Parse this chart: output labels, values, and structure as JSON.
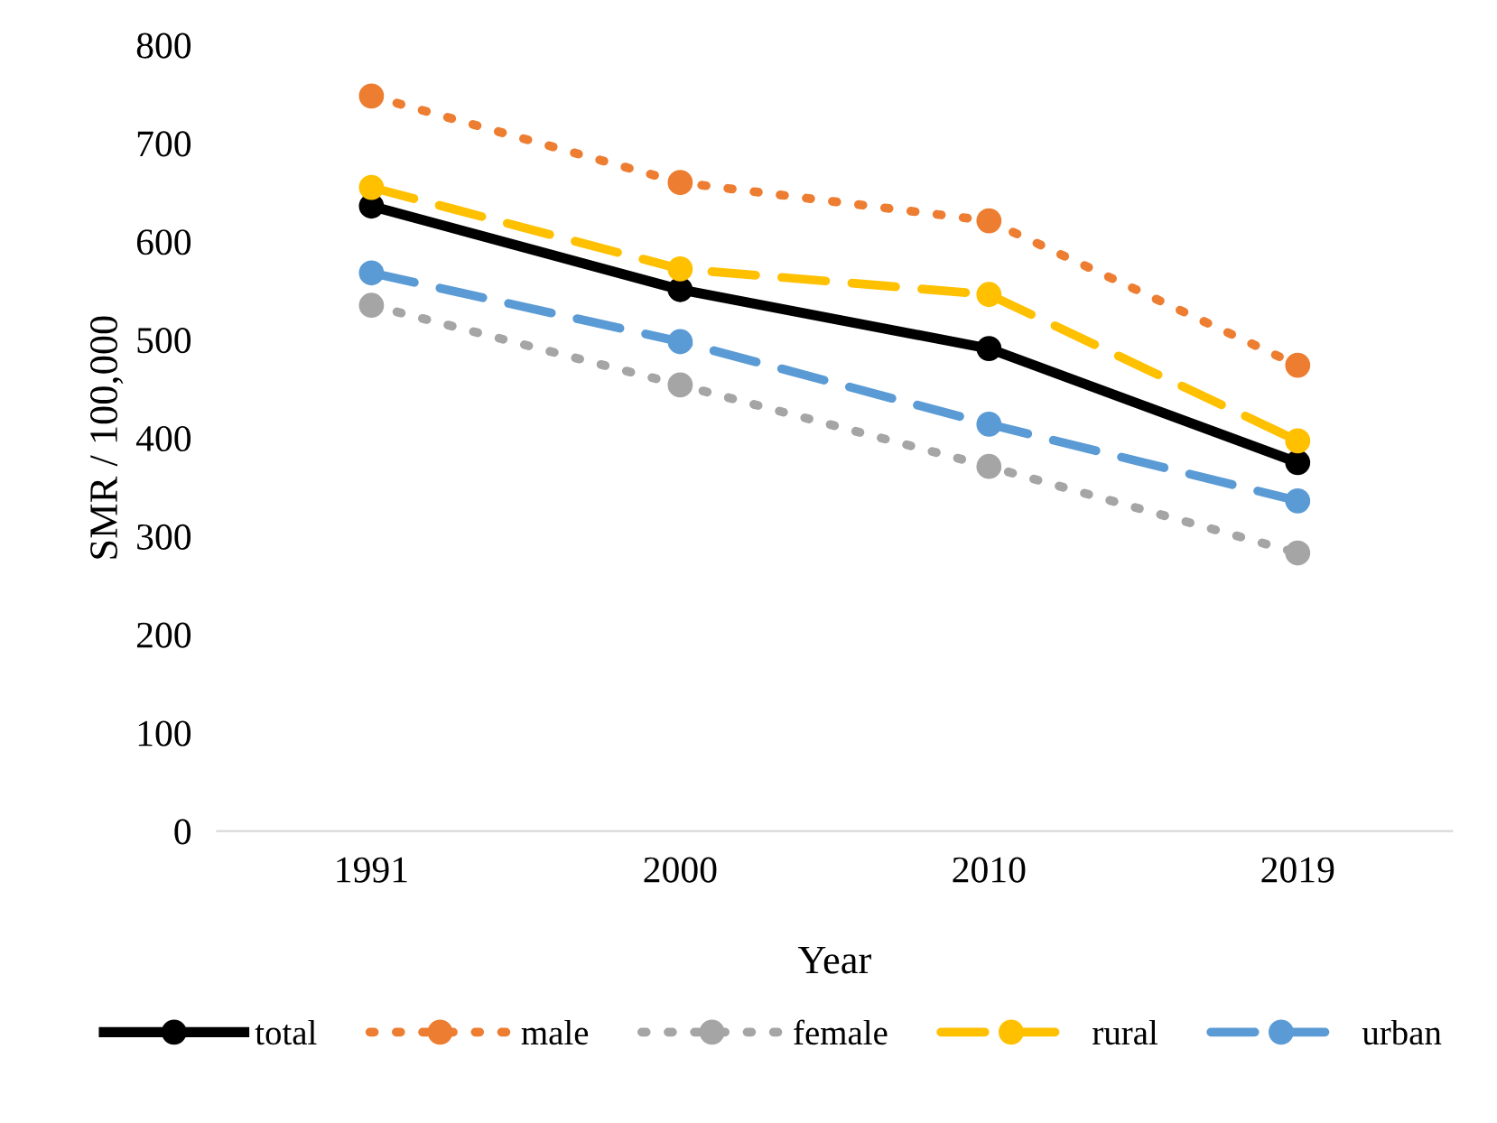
{
  "chart_data": {
    "type": "line",
    "xlabel": "Year",
    "ylabel": "SMR / 100,000",
    "categories": [
      "1991",
      "2000",
      "2010",
      "2019"
    ],
    "series": [
      {
        "name": "total",
        "color": "#000000",
        "line_style": "solid",
        "values": [
          636,
          551,
          491,
          375
        ]
      },
      {
        "name": "male",
        "color": "#ed7d31",
        "line_style": "dotted",
        "values": [
          748,
          660,
          621,
          474
        ]
      },
      {
        "name": "female",
        "color": "#a5a5a5",
        "line_style": "dotted",
        "values": [
          535,
          454,
          371,
          283
        ]
      },
      {
        "name": "rural",
        "color": "#ffc000",
        "line_style": "dashed",
        "values": [
          655,
          572,
          546,
          397
        ]
      },
      {
        "name": "urban",
        "color": "#5b9bd5",
        "line_style": "dashed",
        "values": [
          568,
          498,
          414,
          336
        ]
      }
    ],
    "ylim": [
      0,
      800
    ],
    "yticks": [
      0,
      100,
      200,
      300,
      400,
      500,
      600,
      700,
      800
    ],
    "grid": false,
    "legend": "bottom",
    "marker": "circle"
  }
}
